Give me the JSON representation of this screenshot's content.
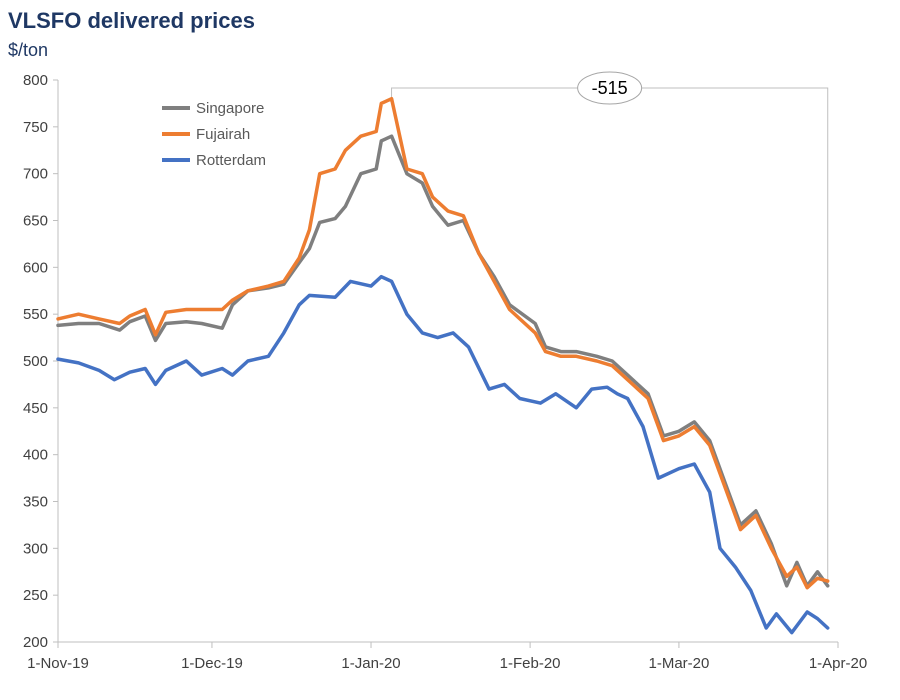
{
  "chart_data": {
    "type": "line",
    "title": "VLSFO delivered prices",
    "ylabel": "$/ton",
    "xlabel": "",
    "ylim": [
      200,
      800
    ],
    "yticks": [
      200,
      250,
      300,
      350,
      400,
      450,
      500,
      550,
      600,
      650,
      700,
      750,
      800
    ],
    "x_range": [
      "2019-11-01",
      "2020-04-01"
    ],
    "xtick_labels": [
      {
        "date": "2019-11-01",
        "label": "1-Nov-19"
      },
      {
        "date": "2019-12-01",
        "label": "1-Dec-19"
      },
      {
        "date": "2020-01-01",
        "label": "1-Jan-20"
      },
      {
        "date": "2020-02-01",
        "label": "1-Feb-20"
      },
      {
        "date": "2020-03-01",
        "label": "1-Mar-20"
      },
      {
        "date": "2020-04-01",
        "label": "1-Apr-20"
      }
    ],
    "grid": false,
    "legend_position": "top-left",
    "annotation": {
      "text": "-515",
      "from_date": "2020-01-05",
      "to_date": "2020-03-30",
      "from_value": 780,
      "to_value": 265
    },
    "series": [
      {
        "name": "Singapore",
        "color": "#7f7f7f",
        "points": [
          [
            "2019-11-01",
            538
          ],
          [
            "2019-11-05",
            540
          ],
          [
            "2019-11-09",
            540
          ],
          [
            "2019-11-13",
            533
          ],
          [
            "2019-11-15",
            542
          ],
          [
            "2019-11-18",
            548
          ],
          [
            "2019-11-20",
            522
          ],
          [
            "2019-11-22",
            540
          ],
          [
            "2019-11-26",
            542
          ],
          [
            "2019-11-29",
            540
          ],
          [
            "2019-12-03",
            535
          ],
          [
            "2019-12-05",
            560
          ],
          [
            "2019-12-08",
            575
          ],
          [
            "2019-12-12",
            578
          ],
          [
            "2019-12-15",
            582
          ],
          [
            "2019-12-18",
            605
          ],
          [
            "2019-12-20",
            620
          ],
          [
            "2019-12-22",
            648
          ],
          [
            "2019-12-25",
            652
          ],
          [
            "2019-12-27",
            665
          ],
          [
            "2019-12-30",
            700
          ],
          [
            "2020-01-02",
            705
          ],
          [
            "2020-01-03",
            735
          ],
          [
            "2020-01-05",
            740
          ],
          [
            "2020-01-08",
            700
          ],
          [
            "2020-01-11",
            690
          ],
          [
            "2020-01-13",
            665
          ],
          [
            "2020-01-16",
            645
          ],
          [
            "2020-01-19",
            650
          ],
          [
            "2020-01-22",
            615
          ],
          [
            "2020-01-25",
            590
          ],
          [
            "2020-01-28",
            560
          ],
          [
            "2020-02-02",
            540
          ],
          [
            "2020-02-04",
            515
          ],
          [
            "2020-02-07",
            510
          ],
          [
            "2020-02-10",
            510
          ],
          [
            "2020-02-14",
            505
          ],
          [
            "2020-02-17",
            500
          ],
          [
            "2020-02-20",
            485
          ],
          [
            "2020-02-24",
            465
          ],
          [
            "2020-02-27",
            420
          ],
          [
            "2020-03-01",
            425
          ],
          [
            "2020-03-04",
            435
          ],
          [
            "2020-03-07",
            415
          ],
          [
            "2020-03-10",
            370
          ],
          [
            "2020-03-13",
            325
          ],
          [
            "2020-03-16",
            340
          ],
          [
            "2020-03-19",
            305
          ],
          [
            "2020-03-22",
            260
          ],
          [
            "2020-03-24",
            285
          ],
          [
            "2020-03-26",
            260
          ],
          [
            "2020-03-28",
            275
          ],
          [
            "2020-03-30",
            260
          ]
        ]
      },
      {
        "name": "Fujairah",
        "color": "#ed7d31",
        "points": [
          [
            "2019-11-01",
            545
          ],
          [
            "2019-11-05",
            550
          ],
          [
            "2019-11-09",
            545
          ],
          [
            "2019-11-13",
            540
          ],
          [
            "2019-11-15",
            548
          ],
          [
            "2019-11-18",
            555
          ],
          [
            "2019-11-20",
            528
          ],
          [
            "2019-11-22",
            552
          ],
          [
            "2019-11-26",
            555
          ],
          [
            "2019-11-29",
            555
          ],
          [
            "2019-12-03",
            555
          ],
          [
            "2019-12-05",
            565
          ],
          [
            "2019-12-08",
            575
          ],
          [
            "2019-12-12",
            580
          ],
          [
            "2019-12-15",
            585
          ],
          [
            "2019-12-18",
            610
          ],
          [
            "2019-12-20",
            640
          ],
          [
            "2019-12-22",
            700
          ],
          [
            "2019-12-25",
            705
          ],
          [
            "2019-12-27",
            725
          ],
          [
            "2019-12-30",
            740
          ],
          [
            "2020-01-02",
            745
          ],
          [
            "2020-01-03",
            775
          ],
          [
            "2020-01-05",
            780
          ],
          [
            "2020-01-08",
            705
          ],
          [
            "2020-01-11",
            700
          ],
          [
            "2020-01-13",
            675
          ],
          [
            "2020-01-16",
            660
          ],
          [
            "2020-01-19",
            655
          ],
          [
            "2020-01-22",
            615
          ],
          [
            "2020-01-25",
            585
          ],
          [
            "2020-01-28",
            555
          ],
          [
            "2020-02-02",
            530
          ],
          [
            "2020-02-04",
            510
          ],
          [
            "2020-02-07",
            505
          ],
          [
            "2020-02-10",
            505
          ],
          [
            "2020-02-14",
            500
          ],
          [
            "2020-02-17",
            495
          ],
          [
            "2020-02-20",
            480
          ],
          [
            "2020-02-24",
            460
          ],
          [
            "2020-02-27",
            415
          ],
          [
            "2020-03-01",
            420
          ],
          [
            "2020-03-04",
            430
          ],
          [
            "2020-03-07",
            410
          ],
          [
            "2020-03-10",
            365
          ],
          [
            "2020-03-13",
            320
          ],
          [
            "2020-03-16",
            335
          ],
          [
            "2020-03-19",
            300
          ],
          [
            "2020-03-22",
            270
          ],
          [
            "2020-03-24",
            280
          ],
          [
            "2020-03-26",
            258
          ],
          [
            "2020-03-28",
            268
          ],
          [
            "2020-03-30",
            265
          ]
        ]
      },
      {
        "name": "Rotterdam",
        "color": "#4472c4",
        "points": [
          [
            "2019-11-01",
            502
          ],
          [
            "2019-11-05",
            498
          ],
          [
            "2019-11-09",
            490
          ],
          [
            "2019-11-12",
            480
          ],
          [
            "2019-11-15",
            488
          ],
          [
            "2019-11-18",
            492
          ],
          [
            "2019-11-20",
            475
          ],
          [
            "2019-11-22",
            490
          ],
          [
            "2019-11-26",
            500
          ],
          [
            "2019-11-29",
            485
          ],
          [
            "2019-12-03",
            492
          ],
          [
            "2019-12-05",
            485
          ],
          [
            "2019-12-08",
            500
          ],
          [
            "2019-12-12",
            505
          ],
          [
            "2019-12-15",
            530
          ],
          [
            "2019-12-18",
            560
          ],
          [
            "2019-12-20",
            570
          ],
          [
            "2019-12-25",
            568
          ],
          [
            "2019-12-28",
            585
          ],
          [
            "2020-01-01",
            580
          ],
          [
            "2020-01-03",
            590
          ],
          [
            "2020-01-05",
            585
          ],
          [
            "2020-01-08",
            550
          ],
          [
            "2020-01-11",
            530
          ],
          [
            "2020-01-14",
            525
          ],
          [
            "2020-01-17",
            530
          ],
          [
            "2020-01-20",
            515
          ],
          [
            "2020-01-24",
            470
          ],
          [
            "2020-01-27",
            475
          ],
          [
            "2020-01-30",
            460
          ],
          [
            "2020-02-03",
            455
          ],
          [
            "2020-02-06",
            465
          ],
          [
            "2020-02-10",
            450
          ],
          [
            "2020-02-13",
            470
          ],
          [
            "2020-02-16",
            472
          ],
          [
            "2020-02-18",
            465
          ],
          [
            "2020-02-20",
            460
          ],
          [
            "2020-02-23",
            430
          ],
          [
            "2020-02-26",
            375
          ],
          [
            "2020-03-01",
            385
          ],
          [
            "2020-03-04",
            390
          ],
          [
            "2020-03-07",
            360
          ],
          [
            "2020-03-09",
            300
          ],
          [
            "2020-03-12",
            280
          ],
          [
            "2020-03-15",
            255
          ],
          [
            "2020-03-18",
            215
          ],
          [
            "2020-03-20",
            230
          ],
          [
            "2020-03-23",
            210
          ],
          [
            "2020-03-26",
            232
          ],
          [
            "2020-03-28",
            225
          ],
          [
            "2020-03-30",
            215
          ]
        ]
      }
    ]
  }
}
